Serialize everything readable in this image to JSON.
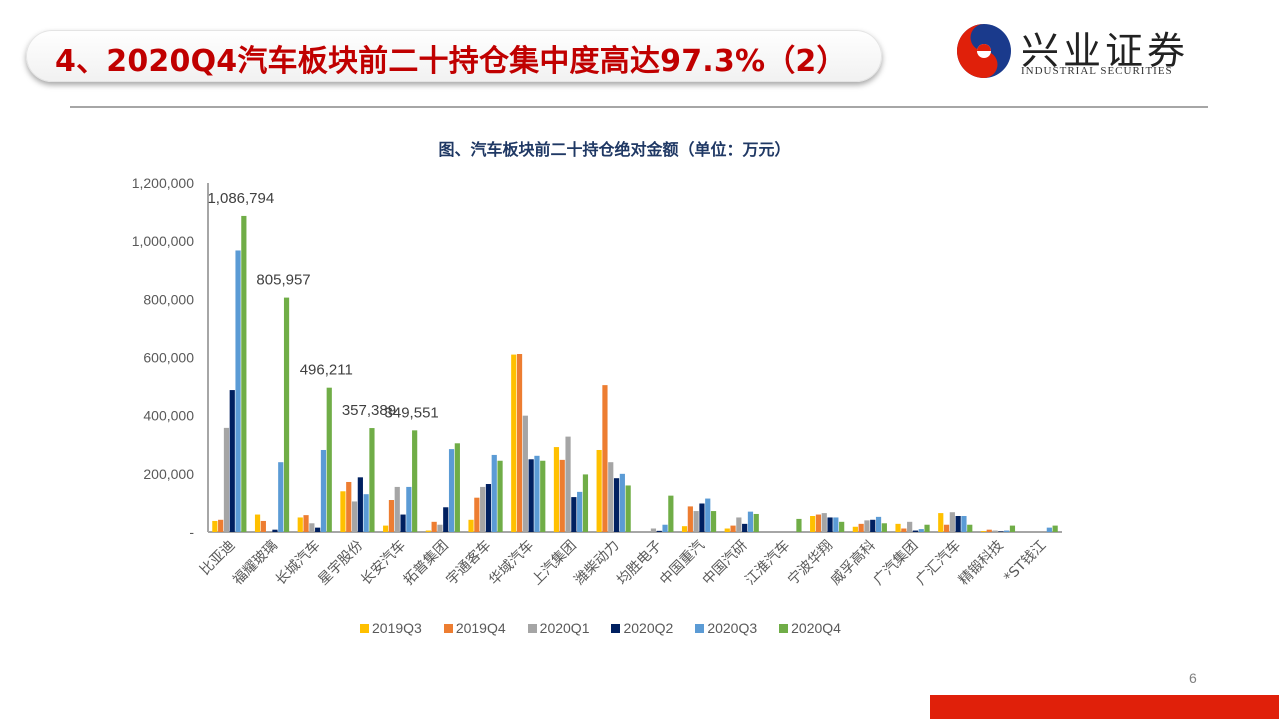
{
  "slide": {
    "title": "4、2020Q4汽车板块前二十持仓集中度高达97.3%（2）",
    "page_number": "6",
    "brand": {
      "name_cn": "兴业证券",
      "name_en": "INDUSTRIAL SECURITIES",
      "colors": {
        "red": "#e0200a",
        "blue": "#1a3a8c",
        "title_red": "#c00000"
      }
    }
  },
  "chart_data": {
    "type": "bar",
    "title": "图、汽车板块前二十持仓绝对金额（单位：万元）",
    "xlabel": "",
    "ylabel": "",
    "ylim": [
      0,
      1200000
    ],
    "yticks": [
      "-",
      "200,000",
      "400,000",
      "600,000",
      "800,000",
      "1,000,000",
      "1,200,000"
    ],
    "grid": false,
    "legend_position": "bottom",
    "categories": [
      "比亚迪",
      "福耀玻璃",
      "长城汽车",
      "星宇股份",
      "长安汽车",
      "拓普集团",
      "宇通客车",
      "华域汽车",
      "上汽集团",
      "潍柴动力",
      "均胜电子",
      "中国重汽",
      "中国汽研",
      "江淮汽车",
      "宁波华翔",
      "威孚高科",
      "广汽集团",
      "广汇汽车",
      "精锻科技",
      "*ST钱江"
    ],
    "series": [
      {
        "name": "2019Q3",
        "color": "#ffc000",
        "values": [
          38000,
          60000,
          50000,
          140000,
          22000,
          5000,
          42000,
          610000,
          292000,
          282000,
          0,
          20000,
          12000,
          0,
          55000,
          18000,
          28000,
          65000,
          3000,
          0
        ]
      },
      {
        "name": "2019Q4",
        "color": "#ed7d31",
        "values": [
          42000,
          38000,
          58000,
          172000,
          110000,
          35000,
          118000,
          612000,
          248000,
          505000,
          0,
          88000,
          22000,
          0,
          60000,
          28000,
          12000,
          25000,
          8000,
          0
        ]
      },
      {
        "name": "2020Q1",
        "color": "#a5a5a5",
        "values": [
          358000,
          3000,
          30000,
          105000,
          155000,
          25000,
          155000,
          400000,
          328000,
          240000,
          12000,
          72000,
          50000,
          0,
          65000,
          40000,
          35000,
          68000,
          5000,
          0
        ]
      },
      {
        "name": "2020Q2",
        "color": "#002060",
        "values": [
          488000,
          8000,
          15000,
          188000,
          60000,
          85000,
          165000,
          250000,
          120000,
          185000,
          4000,
          98000,
          28000,
          0,
          50000,
          42000,
          5000,
          55000,
          2000,
          0
        ]
      },
      {
        "name": "2020Q3",
        "color": "#5b9bd5",
        "values": [
          968000,
          240000,
          282000,
          130000,
          155000,
          285000,
          265000,
          262000,
          138000,
          200000,
          25000,
          115000,
          70000,
          0,
          50000,
          52000,
          10000,
          55000,
          5000,
          15000
        ]
      },
      {
        "name": "2020Q4",
        "color": "#70ad47",
        "values": [
          1086794,
          805957,
          496211,
          357389,
          349551,
          305000,
          245000,
          245000,
          198000,
          160000,
          125000,
          72000,
          62000,
          45000,
          35000,
          30000,
          25000,
          25000,
          22000,
          22000
        ]
      }
    ],
    "data_labels": [
      {
        "category": "比亚迪",
        "series": "2020Q4",
        "text": "1,086,794"
      },
      {
        "category": "福耀玻璃",
        "series": "2020Q4",
        "text": "805,957"
      },
      {
        "category": "长城汽车",
        "series": "2020Q4",
        "text": "496,211"
      },
      {
        "category": "星宇股份",
        "series": "2020Q4",
        "text": "357,389"
      },
      {
        "category": "长安汽车",
        "series": "2020Q4",
        "text": "349,551"
      }
    ]
  }
}
